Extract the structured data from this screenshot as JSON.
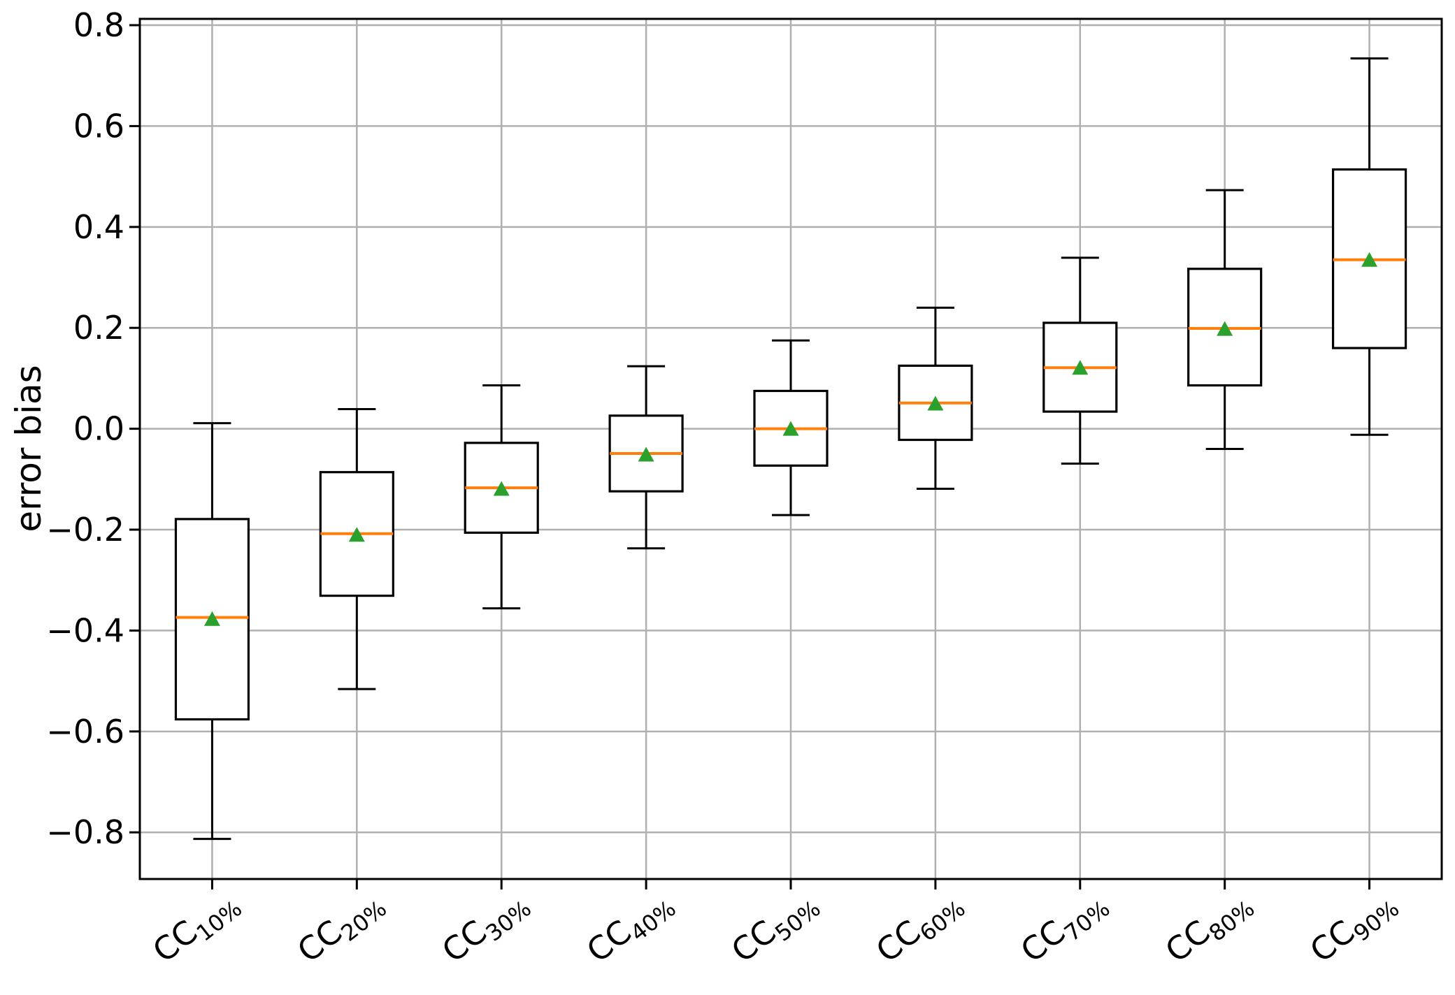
{
  "chart_data": {
    "type": "boxplot",
    "title": "",
    "xlabel": "",
    "ylabel": "error bias",
    "grid": true,
    "legend": "none",
    "ylim": [
      -0.8925,
      0.8125
    ],
    "y_ticks": [
      {
        "value": 0.8,
        "label": "0.8"
      },
      {
        "value": 0.6,
        "label": "0.6"
      },
      {
        "value": 0.4,
        "label": "0.4"
      },
      {
        "value": 0.2,
        "label": "0.2"
      },
      {
        "value": 0.0,
        "label": "0.0"
      },
      {
        "value": -0.2,
        "label": "−0.2"
      },
      {
        "value": -0.4,
        "label": "−0.4"
      },
      {
        "value": -0.6,
        "label": "−0.6"
      },
      {
        "value": -0.8,
        "label": "−0.8"
      }
    ],
    "boxes": [
      {
        "category_base": "CC",
        "category_sub": "10%",
        "whislo": -0.813,
        "q1": -0.576,
        "med": -0.374,
        "mean": -0.377,
        "q3": -0.179,
        "whishi": 0.011
      },
      {
        "category_base": "CC",
        "category_sub": "20%",
        "whislo": -0.516,
        "q1": -0.331,
        "med": -0.208,
        "mean": -0.21,
        "q3": -0.086,
        "whishi": 0.039
      },
      {
        "category_base": "CC",
        "category_sub": "30%",
        "whislo": -0.356,
        "q1": -0.206,
        "med": -0.117,
        "mean": -0.119,
        "q3": -0.028,
        "whishi": 0.086
      },
      {
        "category_base": "CC",
        "category_sub": "40%",
        "whislo": -0.237,
        "q1": -0.124,
        "med": -0.049,
        "mean": -0.051,
        "q3": 0.026,
        "whishi": 0.124
      },
      {
        "category_base": "CC",
        "category_sub": "50%",
        "whislo": -0.171,
        "q1": -0.073,
        "med": 0.0,
        "mean": 0.0,
        "q3": 0.075,
        "whishi": 0.175
      },
      {
        "category_base": "CC",
        "category_sub": "60%",
        "whislo": -0.119,
        "q1": -0.022,
        "med": 0.051,
        "mean": 0.05,
        "q3": 0.125,
        "whishi": 0.24
      },
      {
        "category_base": "CC",
        "category_sub": "70%",
        "whislo": -0.069,
        "q1": 0.034,
        "med": 0.121,
        "mean": 0.121,
        "q3": 0.21,
        "whishi": 0.339
      },
      {
        "category_base": "CC",
        "category_sub": "80%",
        "whislo": -0.04,
        "q1": 0.086,
        "med": 0.199,
        "mean": 0.198,
        "q3": 0.317,
        "whishi": 0.473
      },
      {
        "category_base": "CC",
        "category_sub": "90%",
        "whislo": -0.012,
        "q1": 0.16,
        "med": 0.335,
        "mean": 0.335,
        "q3": 0.514,
        "whishi": 0.734
      }
    ],
    "colors": {
      "box_line": "#000000",
      "median": "#ff7f0e",
      "mean_marker": "#2ca02c",
      "grid": "#b0b0b0",
      "axes": "#000000",
      "background": "#ffffff"
    }
  }
}
